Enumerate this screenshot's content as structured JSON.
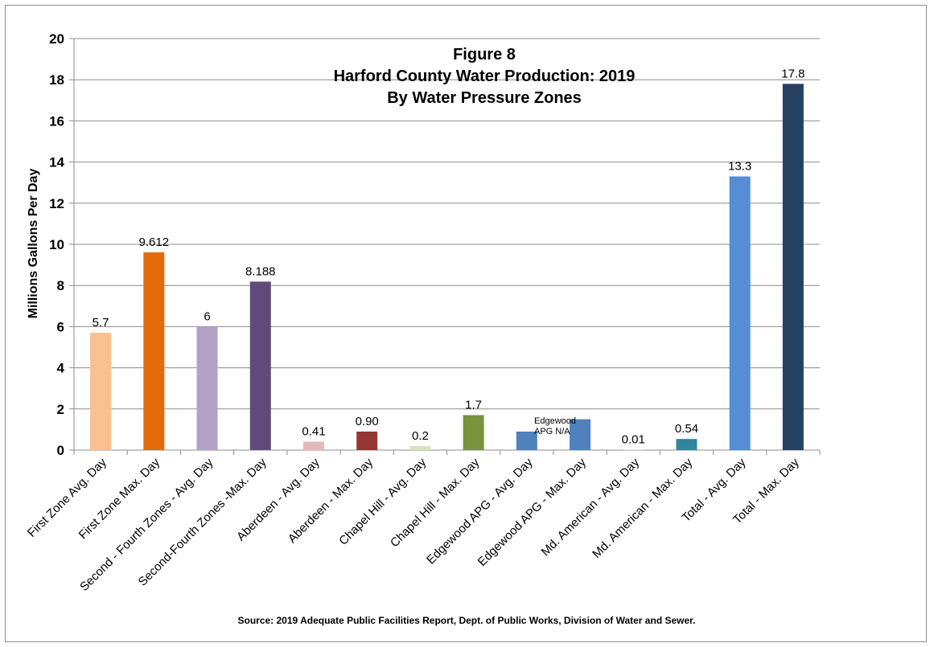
{
  "chart_data": {
    "type": "bar",
    "title": [
      "Figure 8",
      "Harford County Water Production: 2019",
      "By Water Pressure Zones"
    ],
    "ylabel": "Millions Gallons Per Day",
    "xlabel": "",
    "ylim": [
      0,
      20
    ],
    "yticks": [
      0,
      2,
      4,
      6,
      8,
      10,
      12,
      14,
      16,
      18,
      20
    ],
    "grid": true,
    "legend": "none",
    "categories": [
      "First Zone Avg. Day",
      "First Zone Max. Day",
      "Second - Fourth Zones - Avg. Day",
      "Second-Fourth Zones -Max. Day",
      "Aberdeen - Avg. Day",
      "Aberdeen - Max. Day",
      "Chapel Hill - Avg. Day",
      "Chapel Hill - Max. Day",
      "Edgewood APG - Avg. Day",
      "Edgewood APG - Max. Day",
      "Md. American - Avg. Day",
      "Md. American - Max. Day",
      "Total - Avg. Day",
      "Total - Max. Day"
    ],
    "values": [
      5.7,
      9.612,
      6,
      8.188,
      0.41,
      0.9,
      0.2,
      1.7,
      0.9,
      1.5,
      0.01,
      0.54,
      13.3,
      17.8
    ],
    "data_labels": [
      "5.7",
      "9.612",
      "6",
      "8.188",
      "0.41",
      "0.90",
      "0.2",
      "1.7",
      "",
      "",
      "0.01",
      "0.54",
      "13.3",
      "17.8"
    ],
    "colors": [
      "#FAC090",
      "#E36C0A",
      "#B3A2C7",
      "#604A7B",
      "#E6B9B8",
      "#953735",
      "#D7E4BD",
      "#77933C",
      "#4F81BD",
      "#4F81BD",
      "#FFFFFF",
      "#31859C",
      "#558ED5",
      "#254061"
    ],
    "annotation": [
      "Edgewood",
      "APG N/A"
    ],
    "source": "Source: 2019 Adequate Public Facilities Report, Dept. of Public Works, Division of Water and Sewer."
  }
}
